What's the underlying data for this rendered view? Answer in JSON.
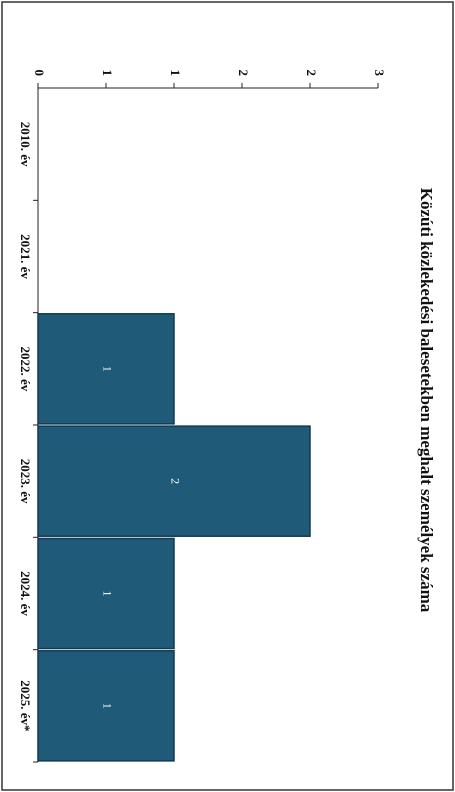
{
  "chart_data": {
    "type": "bar",
    "title": "Közúti közlekedési balesetekben meghalt személyek száma",
    "categories": [
      "2010. év",
      "2021. év",
      "2022. év",
      "2023. év",
      "2024. év",
      "2025. év*"
    ],
    "values": [
      0,
      0,
      1,
      2,
      1,
      1
    ],
    "value_labels": [
      null,
      null,
      "1",
      "2",
      "1",
      "1"
    ],
    "color": "#1f5a78",
    "ylim": [
      0,
      2.5
    ],
    "yticks": [
      0,
      {
        "value": 0.5,
        "label": "1"
      },
      1,
      {
        "value": 1.5,
        "label": "2"
      },
      2,
      {
        "value": 2.5,
        "label": "3"
      }
    ],
    "grid": false
  }
}
